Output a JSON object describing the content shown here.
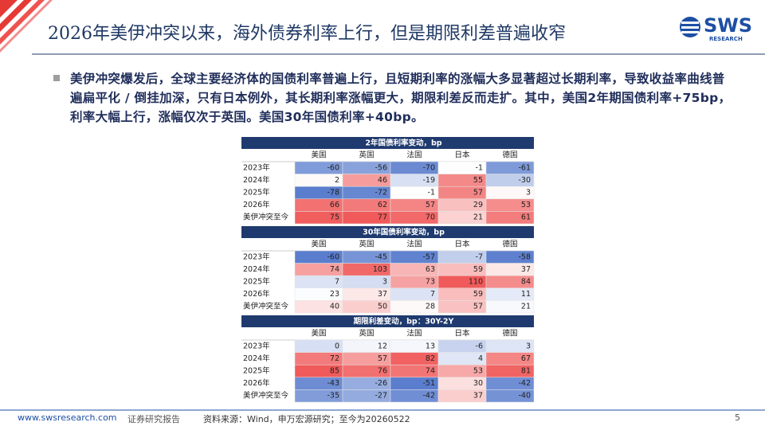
{
  "header": {
    "title": "2026年美伊冲突以来，海外债券利率上行，但是期限利差普遍收窄",
    "logo": {
      "brand": "SWS",
      "sub": "RESEARCH"
    }
  },
  "bullet": "美伊冲突爆发后，全球主要经济体的国债利率普遍上行，且短期利率的涨幅大多显著超过长期利率，导致收益率曲线普遍扁平化 / 倒挂加深，只有日本例外，其长期利率涨幅更大，期限利差反而走扩。其中，美国2年期国债利率+75bp，利率大幅上行，涨幅仅次于英国。美国30年国债利率+40bp。",
  "table": {
    "sections": [
      {
        "title": "2年国债利率变动，bp",
        "columns": [
          "美国",
          "英国",
          "法国",
          "日本",
          "德国"
        ],
        "rows": [
          {
            "label": "2023年",
            "values": [
              -60,
              -56,
              -70,
              -1,
              -61
            ]
          },
          {
            "label": "2024年",
            "values": [
              2,
              46,
              -19,
              55,
              -30
            ]
          },
          {
            "label": "2025年",
            "values": [
              -78,
              -72,
              -1,
              57,
              3
            ]
          },
          {
            "label": "2026年",
            "values": [
              66,
              62,
              57,
              29,
              53
            ]
          },
          {
            "label": "美伊冲突至今",
            "values": [
              75,
              77,
              70,
              21,
              61
            ]
          }
        ]
      },
      {
        "title": "30年国债利率变动，bp",
        "columns": [
          "美国",
          "英国",
          "法国",
          "日本",
          "德国"
        ],
        "rows": [
          {
            "label": "2023年",
            "values": [
              -60,
              -45,
              -57,
              -7,
              -58
            ]
          },
          {
            "label": "2024年",
            "values": [
              74,
              103,
              63,
              59,
              37
            ]
          },
          {
            "label": "2025年",
            "values": [
              7,
              3,
              73,
              110,
              84
            ]
          },
          {
            "label": "2026年",
            "values": [
              23,
              37,
              7,
              59,
              11
            ]
          },
          {
            "label": "美伊冲突至今",
            "values": [
              40,
              50,
              28,
              57,
              21
            ]
          }
        ]
      },
      {
        "title": "期限利差变动，bp：30Y-2Y",
        "columns": [
          "美国",
          "英国",
          "法国",
          "日本",
          "德国"
        ],
        "rows": [
          {
            "label": "2023年",
            "values": [
              0,
              12,
              13,
              -6,
              3
            ]
          },
          {
            "label": "2024年",
            "values": [
              72,
              57,
              82,
              4,
              67
            ]
          },
          {
            "label": "2025年",
            "values": [
              85,
              76,
              74,
              53,
              81
            ]
          },
          {
            "label": "2026年",
            "values": [
              -43,
              -26,
              -51,
              30,
              -42
            ]
          },
          {
            "label": "美伊冲突至今",
            "values": [
              -35,
              -27,
              -42,
              37,
              -40
            ]
          }
        ]
      }
    ]
  },
  "footer": {
    "url": "www.swsresearch.com",
    "report_type": "证券研究报告",
    "source": "资料来源：Wind，申万宏源研究；至今为20260522",
    "page": "5"
  }
}
